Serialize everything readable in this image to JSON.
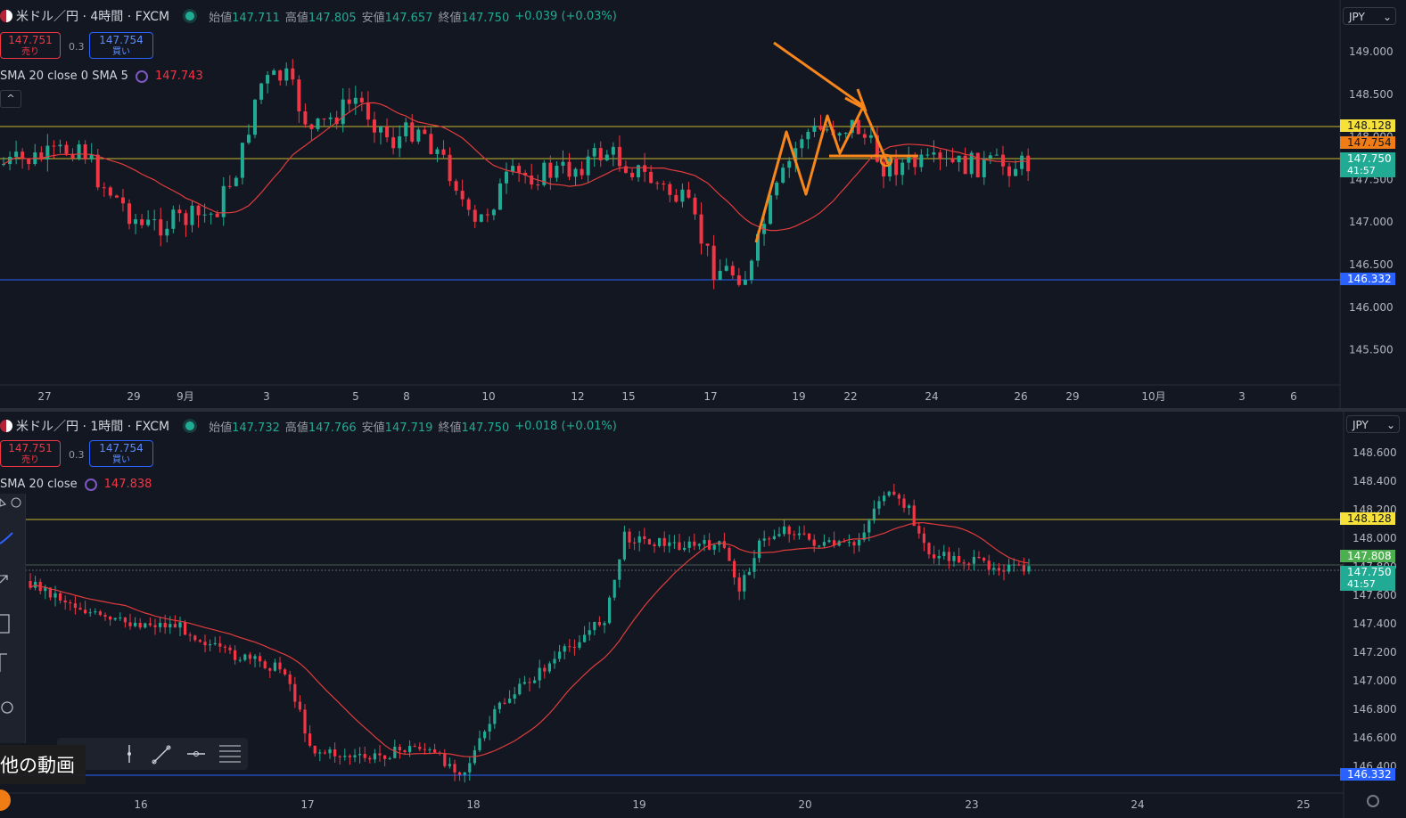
{
  "top": {
    "symbol": "米ドル／円 · 4時間 · FXCM",
    "ohlc": [
      {
        "k": "始値",
        "v": "147.711"
      },
      {
        "k": "高値",
        "v": "147.805"
      },
      {
        "k": "安値",
        "v": "147.657"
      },
      {
        "k": "終値",
        "v": "147.750"
      }
    ],
    "change": "+0.039 (+0.03%)",
    "sell_price": "147.751",
    "sell_label": "売り",
    "buy_price": "147.754",
    "buy_label": "買い",
    "spread": "0.3",
    "indicator_name": "SMA 20 close 0 SMA 5",
    "indicator_value": "147.743",
    "collapse_icon": "^",
    "currency": "JPY",
    "price_ticks": [
      "149.000",
      "148.500",
      "148.000",
      "147.500",
      "147.000",
      "146.500",
      "146.000",
      "145.500"
    ],
    "tags": [
      {
        "label": "148.128",
        "bg": "#f5e13a",
        "fg": "#131722"
      },
      {
        "label": "147.754",
        "bg": "#f07c16",
        "fg": "#131722"
      },
      {
        "label": "147.750",
        "sub": "41:57",
        "bg": "#22ab94",
        "fg": "#ffffff"
      },
      {
        "label": "146.332",
        "bg": "#2962ff",
        "fg": "#ffffff"
      }
    ],
    "time_ticks": [
      "27",
      "29",
      "9月",
      "3",
      "5",
      "8",
      "10",
      "12",
      "15",
      "17",
      "19",
      "22",
      "24",
      "26",
      "29",
      "10月",
      "3",
      "6"
    ]
  },
  "bottom": {
    "symbol": "米ドル／円 · 1時間 · FXCM",
    "ohlc": [
      {
        "k": "始値",
        "v": "147.732"
      },
      {
        "k": "高値",
        "v": "147.766"
      },
      {
        "k": "安値",
        "v": "147.719"
      },
      {
        "k": "終値",
        "v": "147.750"
      }
    ],
    "change": "+0.018 (+0.01%)",
    "sell_price": "147.751",
    "sell_label": "売り",
    "buy_price": "147.754",
    "buy_label": "買い",
    "spread": "0.3",
    "indicator_name": "SMA 20 close",
    "indicator_value": "147.838",
    "currency": "JPY",
    "price_ticks": [
      "148.600",
      "148.400",
      "148.200",
      "148.000",
      "147.800",
      "147.600",
      "147.400",
      "147.200",
      "147.000",
      "146.800",
      "146.600",
      "146.400"
    ],
    "tags": [
      {
        "label": "148.128",
        "bg": "#f5e13a",
        "fg": "#131722"
      },
      {
        "label": "147.808",
        "bg": "#4caf50",
        "fg": "#ffffff"
      },
      {
        "label": "147.750",
        "sub": "41:57",
        "bg": "#22ab94",
        "fg": "#ffffff"
      },
      {
        "label": "146.332",
        "bg": "#2962ff",
        "fg": "#ffffff"
      }
    ],
    "time_ticks": [
      "16",
      "17",
      "18",
      "19",
      "20",
      "23",
      "24",
      "25"
    ],
    "video_label": "他の動画"
  },
  "colors": {
    "up": "#22ab94",
    "down": "#f23645",
    "sma": "#e03c3c",
    "annot": "#f7861c",
    "yellow_line": "#f5e13a",
    "blue_line": "#2962ff"
  }
}
